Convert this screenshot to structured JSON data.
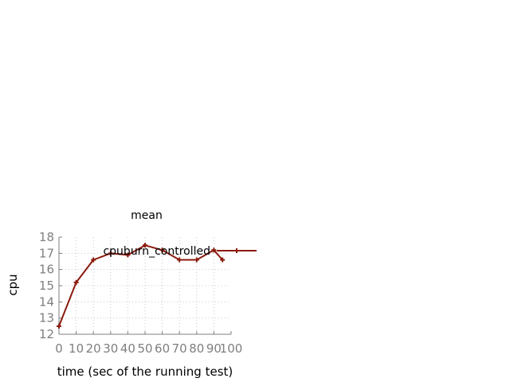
{
  "chart_data": {
    "type": "line",
    "title": "mean",
    "xlabel": "time (sec of the running test)",
    "ylabel": "cpu",
    "xlim": [
      0,
      100
    ],
    "ylim": [
      12,
      18
    ],
    "xticks": [
      "0",
      "10",
      "20",
      "30",
      "40",
      "50",
      "60",
      "70",
      "80",
      "90",
      "100"
    ],
    "yticks": [
      "12",
      "13",
      "14",
      "15",
      "16",
      "17",
      "18"
    ],
    "grid": true,
    "legend_position": "top-right",
    "series": [
      {
        "name": "cpuburn_controlled",
        "color": "#8b1a0e",
        "marker": "plus",
        "x": [
          0,
          10,
          20,
          30,
          40,
          50,
          60,
          70,
          80,
          90,
          95
        ],
        "y": [
          12.5,
          15.2,
          16.6,
          17.0,
          16.9,
          17.5,
          17.2,
          16.6,
          16.6,
          17.2,
          16.6
        ]
      }
    ]
  }
}
